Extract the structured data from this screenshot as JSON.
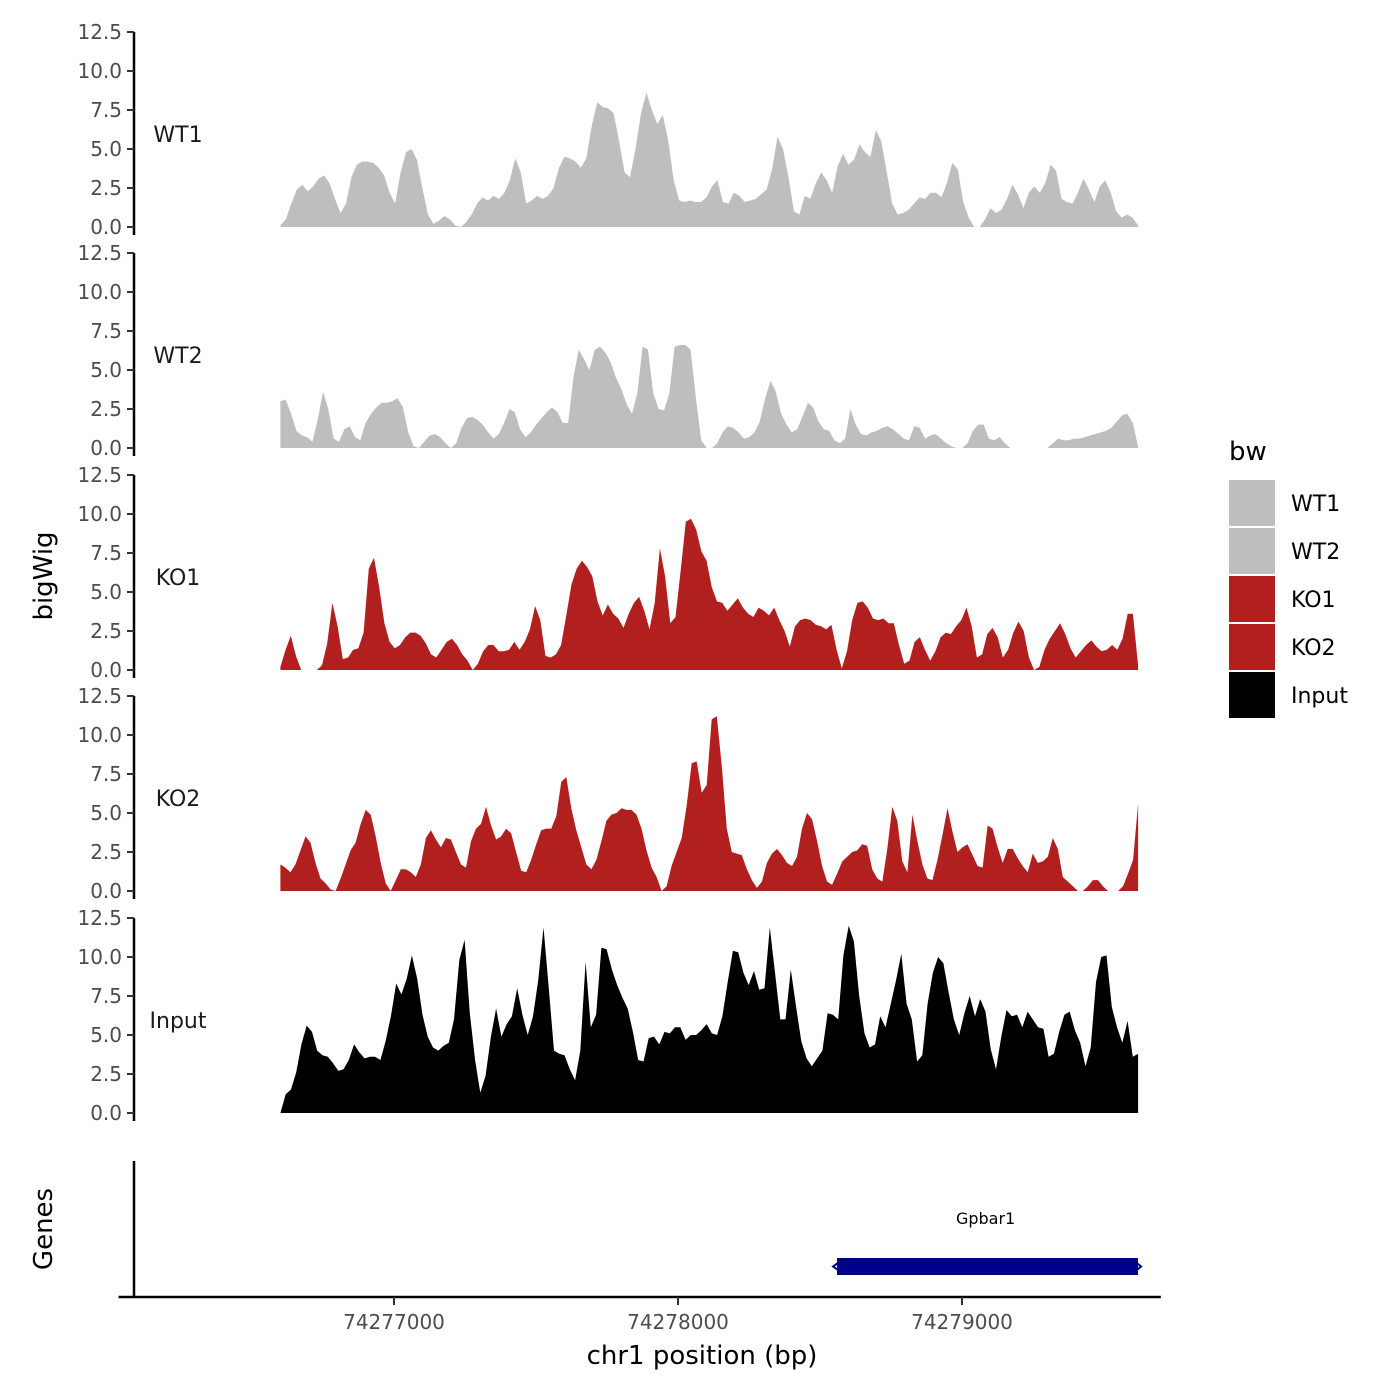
{
  "chart_data": {
    "type": "area",
    "y_axis_title": "bigWig",
    "x_axis_title": "chr1 position (bp)",
    "genes_axis_title": "Genes",
    "x_range": [
      74276600,
      74279620
    ],
    "x_lim": [
      74276030,
      74279700
    ],
    "x_ticks": [
      74277000,
      74278000,
      74279000
    ],
    "x_tick_labels": [
      "74277000",
      "74278000",
      "74279000"
    ],
    "y_range": [
      0,
      12.5
    ],
    "y_ticks": [
      0,
      2.5,
      5,
      7.5,
      10,
      12.5
    ],
    "y_tick_labels": [
      "0.0",
      "2.5",
      "5.0",
      "7.5",
      "10.0",
      "12.5"
    ],
    "legend": {
      "title": "bw",
      "entries": [
        {
          "label": "WT1",
          "color": "#bebebe"
        },
        {
          "label": "WT2",
          "color": "#bebebe"
        },
        {
          "label": "KO1",
          "color": "#b21f1f"
        },
        {
          "label": "KO2",
          "color": "#b21f1f"
        },
        {
          "label": "Input",
          "color": "#000000"
        }
      ]
    },
    "tracks": [
      {
        "name": "WT1",
        "color": "#bebebe",
        "values": [
          0.1,
          0.5,
          1.5,
          2.4,
          2.7,
          2.3,
          2.6,
          3.1,
          3.3,
          2.8,
          1.8,
          0.9,
          1.5,
          3.2,
          4.0,
          4.2,
          4.2,
          4.1,
          3.8,
          3.3,
          2.2,
          1.5,
          3.5,
          4.8,
          5.0,
          4.3,
          2.5,
          0.8,
          0.2,
          0.4,
          0.7,
          0.5,
          0.1,
          0.0,
          0.3,
          0.8,
          1.5,
          1.9,
          1.7,
          2.0,
          1.8,
          2.2,
          3.0,
          4.4,
          3.5,
          1.5,
          1.7,
          2.0,
          1.8,
          2.0,
          2.5,
          3.8,
          4.5,
          4.4,
          4.2,
          3.8,
          4.4,
          6.5,
          8.0,
          7.7,
          7.6,
          7.3,
          5.5,
          3.5,
          3.2,
          5.0,
          7.3,
          8.6,
          7.5,
          6.6,
          7.2,
          5.5,
          3.0,
          1.7,
          1.6,
          1.7,
          1.6,
          1.6,
          1.9,
          2.6,
          3.0,
          1.6,
          1.5,
          2.2,
          2.0,
          1.6,
          1.7,
          1.8,
          2.1,
          2.4,
          3.7,
          5.8,
          5.0,
          3.2,
          1.0,
          0.8,
          2.0,
          1.8,
          2.8,
          3.5,
          3.0,
          2.2,
          3.9,
          4.7,
          4.0,
          4.3,
          5.3,
          4.8,
          4.5,
          6.2,
          5.5,
          3.5,
          1.5,
          0.8,
          0.9,
          1.1,
          1.5,
          1.9,
          1.8,
          2.2,
          2.2,
          1.9,
          2.8,
          4.1,
          3.7,
          1.6,
          0.6,
          0.0,
          0.0,
          0.5,
          1.2,
          0.9,
          1.1,
          1.8,
          2.7,
          2.1,
          1.2,
          2.2,
          2.6,
          2.2,
          2.8,
          4.0,
          3.6,
          1.8,
          1.6,
          1.5,
          2.2,
          3.1,
          2.4,
          1.6,
          2.6,
          3.0,
          2.2,
          1.0,
          0.6,
          0.8,
          0.6,
          0.1
        ]
      },
      {
        "name": "WT2",
        "color": "#bebebe",
        "values": [
          3.0,
          3.1,
          2.2,
          1.1,
          0.8,
          0.7,
          0.4,
          1.8,
          3.6,
          2.5,
          0.6,
          0.4,
          1.2,
          1.4,
          0.7,
          0.5,
          1.6,
          2.2,
          2.6,
          2.9,
          2.9,
          3.0,
          3.2,
          2.6,
          1.0,
          0.1,
          0.0,
          0.4,
          0.8,
          0.9,
          0.7,
          0.3,
          0.0,
          0.3,
          1.3,
          1.9,
          2.0,
          1.8,
          1.5,
          1.0,
          0.6,
          0.9,
          1.6,
          2.5,
          2.3,
          1.2,
          0.7,
          1.0,
          1.5,
          1.9,
          2.3,
          2.6,
          2.3,
          1.6,
          1.6,
          4.5,
          6.3,
          5.7,
          5.0,
          6.3,
          6.5,
          6.1,
          5.5,
          4.5,
          3.8,
          2.8,
          2.2,
          3.5,
          6.5,
          6.3,
          3.5,
          2.5,
          2.4,
          3.5,
          6.5,
          6.6,
          6.6,
          6.3,
          3.2,
          0.5,
          0.0,
          0.0,
          0.3,
          1.0,
          1.4,
          1.3,
          1.0,
          0.6,
          0.7,
          1.0,
          1.7,
          3.2,
          4.3,
          3.6,
          2.2,
          1.5,
          1.0,
          1.2,
          2.0,
          2.9,
          2.6,
          1.7,
          1.2,
          1.1,
          0.5,
          0.3,
          0.6,
          2.5,
          1.5,
          0.9,
          0.8,
          1.0,
          1.1,
          1.3,
          1.4,
          1.2,
          0.9,
          0.6,
          0.5,
          1.4,
          1.3,
          0.6,
          0.8,
          0.9,
          0.6,
          0.3,
          0.1,
          0.0,
          0.0,
          0.3,
          1.1,
          1.5,
          1.5,
          0.6,
          0.5,
          0.7,
          0.3,
          0.0,
          0.0,
          0.0,
          0.0,
          0.0,
          0.0,
          0.0,
          0.0,
          0.3,
          0.6,
          0.5,
          0.5,
          0.6,
          0.6,
          0.7,
          0.8,
          0.9,
          1.0,
          1.1,
          1.3,
          1.7,
          2.1,
          2.2,
          1.6,
          0.1
        ]
      },
      {
        "name": "KO1",
        "color": "#b21f1f",
        "values": [
          0.2,
          1.3,
          2.2,
          0.9,
          0.0,
          0.0,
          0.0,
          0.0,
          0.3,
          1.7,
          4.3,
          2.8,
          0.7,
          0.8,
          1.3,
          1.4,
          2.4,
          6.5,
          7.2,
          5.3,
          3.0,
          1.8,
          1.4,
          1.6,
          2.1,
          2.4,
          2.4,
          2.2,
          1.7,
          1.0,
          0.8,
          1.3,
          1.8,
          2.0,
          1.6,
          1.0,
          0.6,
          0.0,
          0.4,
          1.2,
          1.6,
          1.6,
          1.2,
          1.2,
          1.3,
          1.8,
          1.3,
          1.8,
          2.6,
          4.1,
          3.2,
          0.9,
          0.8,
          1.0,
          1.6,
          3.5,
          5.5,
          6.5,
          7.0,
          6.6,
          6.0,
          4.4,
          3.5,
          4.2,
          3.6,
          3.3,
          2.7,
          3.6,
          4.3,
          4.7,
          3.8,
          2.6,
          4.3,
          7.8,
          6.0,
          3.0,
          3.4,
          6.4,
          9.5,
          9.7,
          9.0,
          7.6,
          7.0,
          5.3,
          4.4,
          4.3,
          3.8,
          4.2,
          4.6,
          4.0,
          3.6,
          3.4,
          4.0,
          3.8,
          3.5,
          4.0,
          3.2,
          2.5,
          1.5,
          2.8,
          3.2,
          3.3,
          3.2,
          2.9,
          2.8,
          2.6,
          2.9,
          1.3,
          0.1,
          1.2,
          3.2,
          4.3,
          4.4,
          4.0,
          3.3,
          3.2,
          3.3,
          3.0,
          3.0,
          1.6,
          0.4,
          0.6,
          1.8,
          2.1,
          1.3,
          0.6,
          1.2,
          2.1,
          2.4,
          2.3,
          2.8,
          3.2,
          4.0,
          2.8,
          0.8,
          1.0,
          2.3,
          2.7,
          2.1,
          0.8,
          1.3,
          2.4,
          3.1,
          2.5,
          0.8,
          0.0,
          0.2,
          1.3,
          2.0,
          2.5,
          3.0,
          2.3,
          1.4,
          0.8,
          1.2,
          1.6,
          1.9,
          1.5,
          1.2,
          1.3,
          1.6,
          1.3,
          2.0,
          3.6,
          3.6,
          0.3
        ]
      },
      {
        "name": "KO2",
        "color": "#b21f1f",
        "values": [
          1.7,
          1.5,
          1.2,
          1.7,
          2.6,
          3.5,
          3.1,
          1.8,
          0.8,
          0.5,
          0.1,
          0.0,
          0.8,
          1.7,
          2.6,
          3.1,
          4.3,
          5.2,
          4.9,
          3.5,
          1.8,
          0.5,
          0.0,
          0.7,
          1.4,
          1.4,
          1.2,
          0.9,
          1.7,
          3.4,
          3.9,
          3.3,
          2.8,
          3.4,
          3.3,
          2.5,
          1.7,
          1.5,
          3.2,
          4.0,
          4.3,
          5.4,
          4.2,
          3.3,
          3.5,
          4.0,
          3.7,
          2.5,
          1.3,
          1.2,
          2.0,
          3.0,
          3.9,
          4.0,
          4.0,
          4.8,
          7.0,
          7.3,
          5.3,
          3.9,
          2.8,
          1.7,
          1.4,
          2.0,
          3.2,
          4.5,
          4.9,
          5.0,
          5.3,
          5.2,
          5.2,
          4.9,
          4.0,
          2.6,
          1.5,
          0.9,
          0.0,
          0.3,
          1.6,
          2.5,
          3.4,
          5.5,
          8.2,
          8.3,
          6.3,
          6.8,
          11.0,
          11.2,
          8.0,
          4.0,
          2.5,
          2.4,
          2.3,
          1.4,
          0.7,
          0.2,
          0.6,
          1.8,
          2.4,
          2.7,
          2.3,
          1.8,
          1.6,
          2.2,
          4.0,
          5.0,
          4.6,
          3.2,
          1.6,
          0.6,
          0.4,
          1.1,
          1.9,
          2.2,
          2.5,
          2.6,
          3.0,
          2.9,
          1.4,
          0.8,
          0.6,
          2.7,
          5.4,
          4.5,
          1.9,
          1.2,
          4.9,
          3.2,
          1.7,
          0.8,
          0.7,
          2.0,
          3.6,
          5.3,
          3.8,
          2.5,
          2.8,
          3.0,
          2.3,
          1.6,
          1.5,
          4.2,
          4.0,
          2.8,
          1.8,
          2.7,
          2.7,
          2.1,
          1.6,
          1.2,
          2.4,
          1.8,
          1.9,
          2.2,
          3.4,
          2.7,
          0.9,
          0.6,
          0.3,
          0.0,
          0.0,
          0.3,
          0.7,
          0.7,
          0.3,
          0.0,
          0.0,
          0.0,
          0.3,
          1.1,
          2.0,
          5.6
        ]
      },
      {
        "name": "Input",
        "color": "#000000",
        "values": [
          0.0,
          1.2,
          1.5,
          2.6,
          4.4,
          5.6,
          5.2,
          4.0,
          3.7,
          3.6,
          3.2,
          2.7,
          2.8,
          3.4,
          4.4,
          3.9,
          3.5,
          3.6,
          3.6,
          3.4,
          4.6,
          6.2,
          8.3,
          7.6,
          8.6,
          10.1,
          8.6,
          6.3,
          4.9,
          4.2,
          4.0,
          4.3,
          4.5,
          6.0,
          9.8,
          11.1,
          6.4,
          3.4,
          1.3,
          2.4,
          4.9,
          6.7,
          4.9,
          5.7,
          6.2,
          8.0,
          6.3,
          5.0,
          6.2,
          8.5,
          11.9,
          8.0,
          4.0,
          3.8,
          3.7,
          2.8,
          2.1,
          4.0,
          9.7,
          5.5,
          6.3,
          10.6,
          10.5,
          9.2,
          8.2,
          7.4,
          6.7,
          5.2,
          3.4,
          3.3,
          4.8,
          4.9,
          4.4,
          5.2,
          5.1,
          5.5,
          5.5,
          4.7,
          5.0,
          5.0,
          5.3,
          5.7,
          5.1,
          5.0,
          6.2,
          8.4,
          10.4,
          10.3,
          9.0,
          8.2,
          9.1,
          7.9,
          8.0,
          11.9,
          9.0,
          6.0,
          6.0,
          9.2,
          6.8,
          4.6,
          3.5,
          3.0,
          3.5,
          4.0,
          6.4,
          6.3,
          6.0,
          10.1,
          12.0,
          11.0,
          7.5,
          5.1,
          4.2,
          4.4,
          6.2,
          5.5,
          7.0,
          8.5,
          10.2,
          7.0,
          6.0,
          3.3,
          3.7,
          7.0,
          9.0,
          10.0,
          9.6,
          7.7,
          6.0,
          5.0,
          6.4,
          7.5,
          6.2,
          7.3,
          6.5,
          4.1,
          2.8,
          4.9,
          6.6,
          6.2,
          6.3,
          5.5,
          6.5,
          6.0,
          5.5,
          5.4,
          3.6,
          3.8,
          5.2,
          6.3,
          6.5,
          5.3,
          4.5,
          3.0,
          4.2,
          8.4,
          10.0,
          10.1,
          6.8,
          5.5,
          4.5,
          5.9,
          3.6,
          3.8
        ]
      }
    ],
    "genes": [
      {
        "name": "Gpbar1",
        "start": 74278560,
        "end": 74279620,
        "strand": "-",
        "color": "#00008b"
      }
    ]
  }
}
